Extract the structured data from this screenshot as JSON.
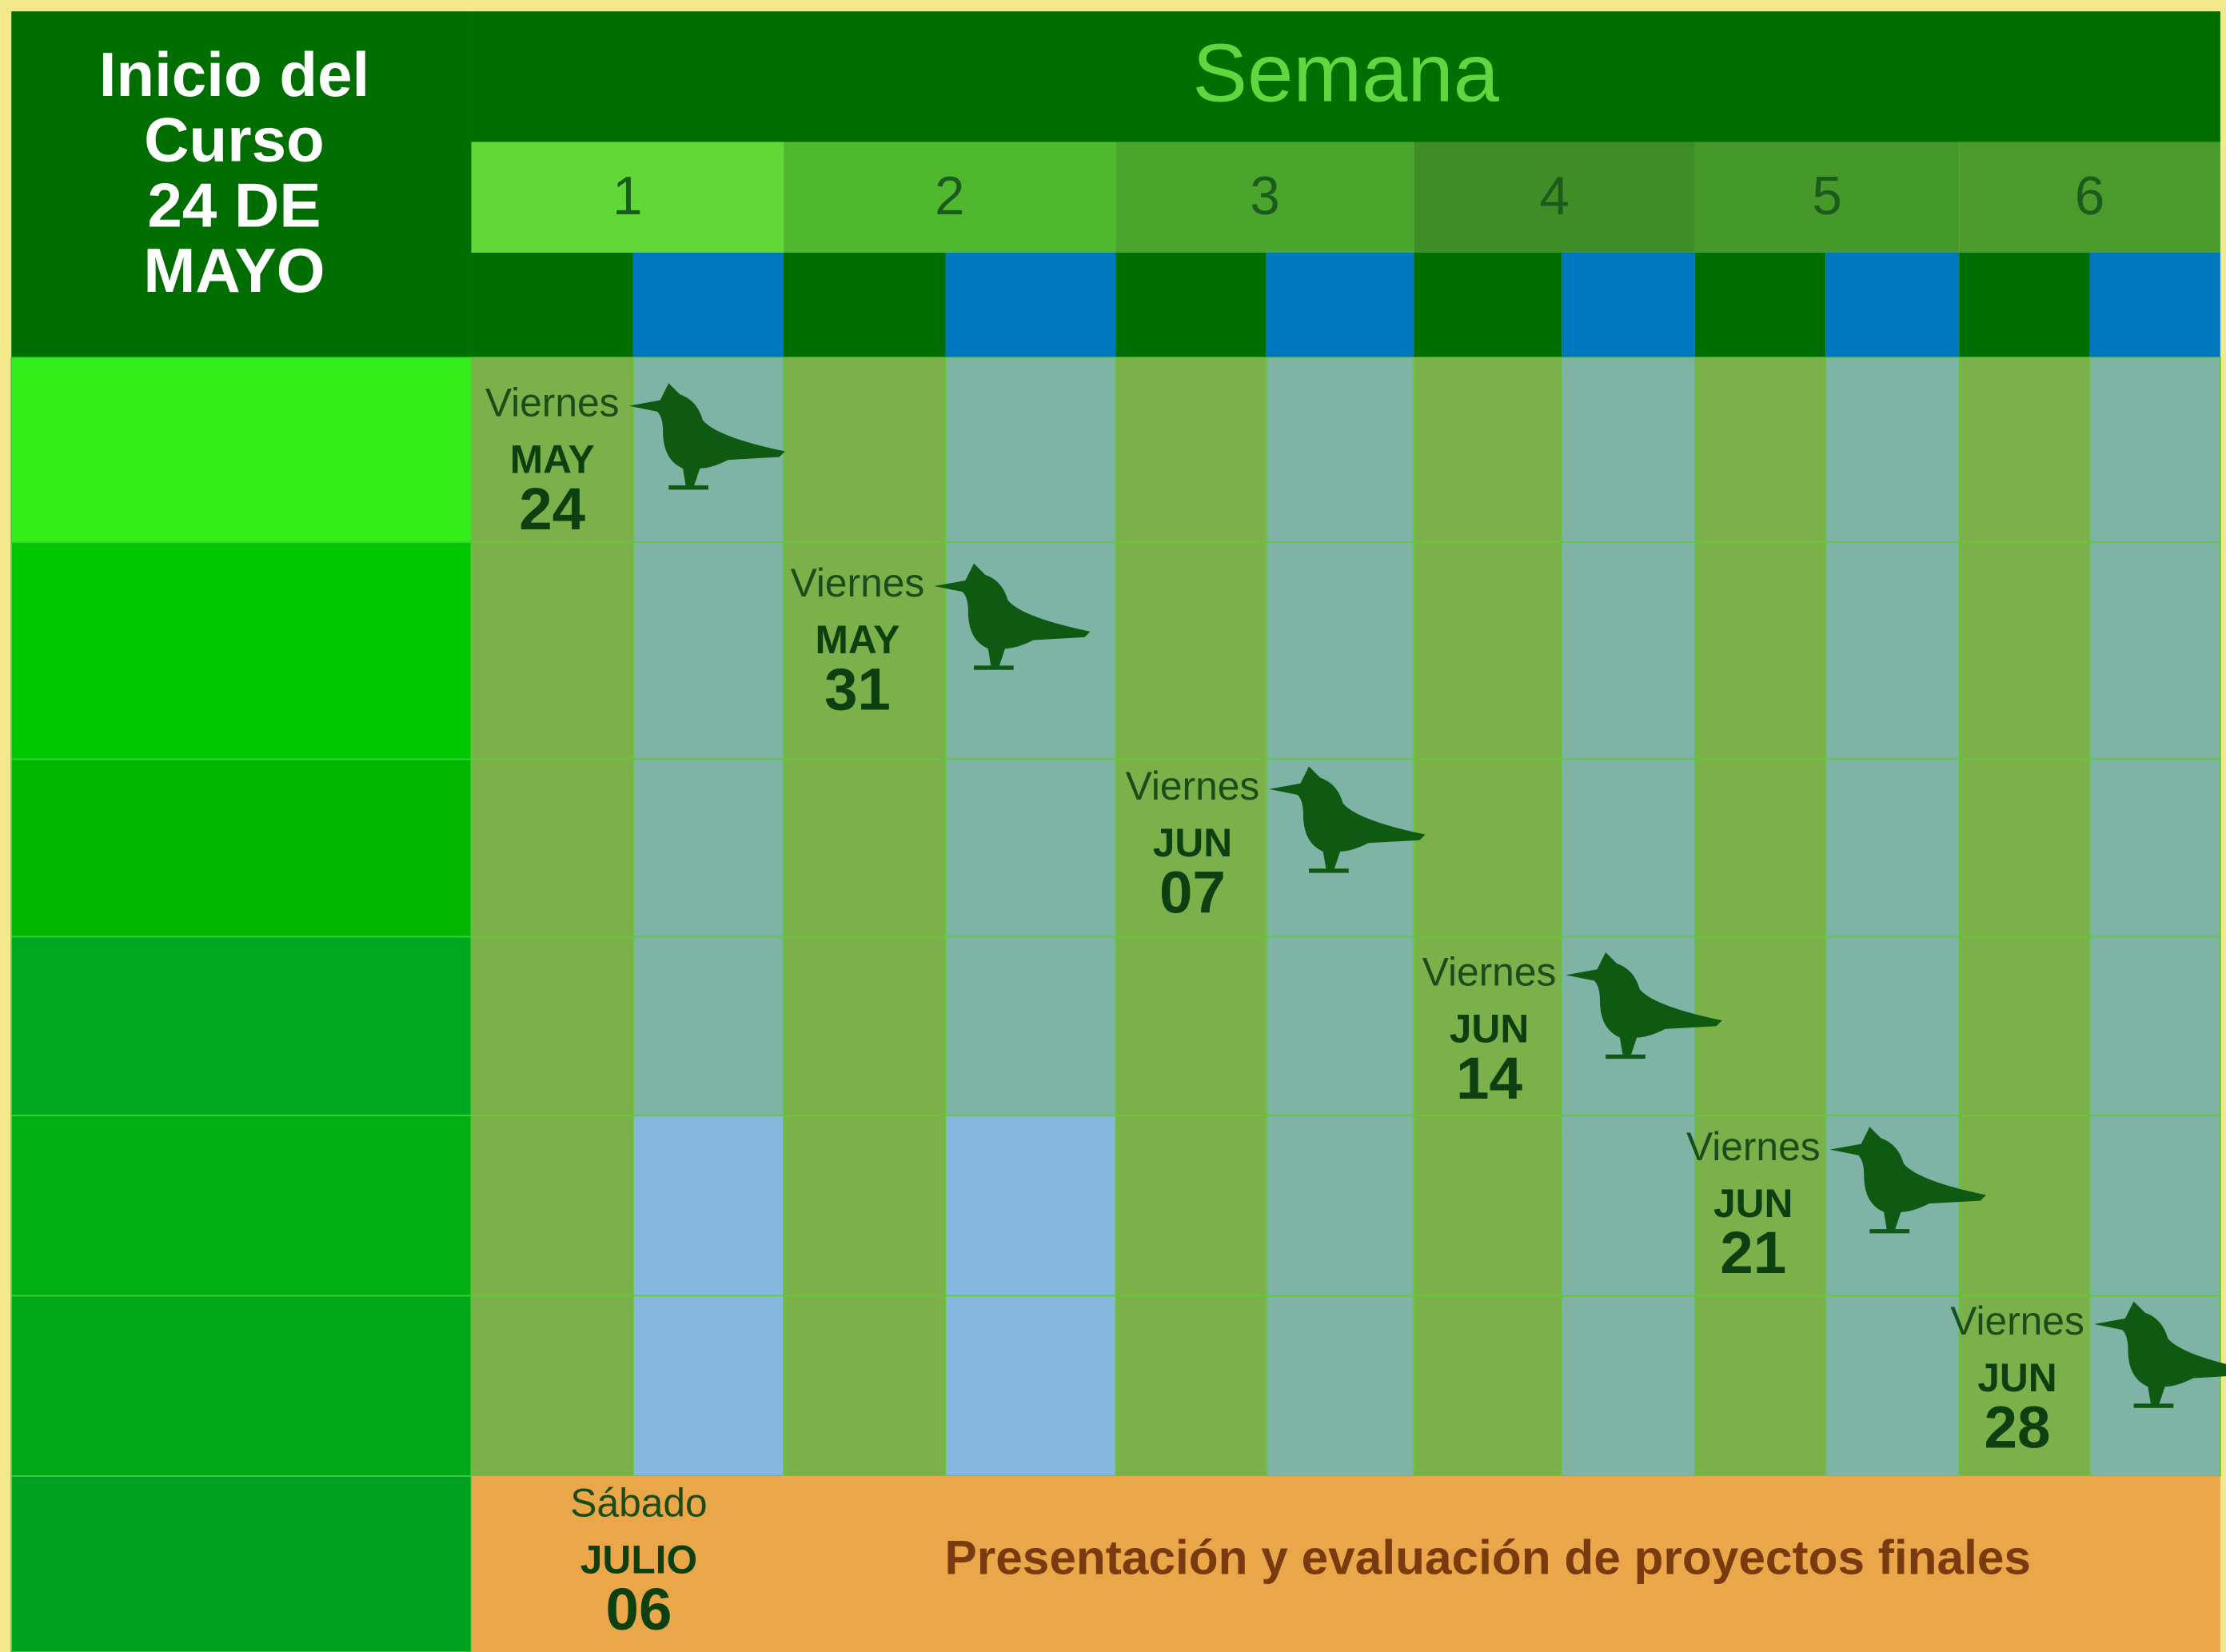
{
  "header": {
    "start_lines": [
      "Inicio del",
      "Curso",
      "24 DE",
      "MAYO"
    ],
    "week_title": "Semana",
    "weeks": [
      "1",
      "2",
      "3",
      "4",
      "5",
      "6"
    ]
  },
  "sessions": [
    {
      "day": "Viernes",
      "month": "MAY",
      "date": "24"
    },
    {
      "day": "Viernes",
      "month": "MAY",
      "date": "31"
    },
    {
      "day": "Viernes",
      "month": "JUN",
      "date": "07"
    },
    {
      "day": "Viernes",
      "month": "JUN",
      "date": "14"
    },
    {
      "day": "Viernes",
      "month": "JUN",
      "date": "21"
    },
    {
      "day": "Viernes",
      "month": "JUN",
      "date": "28"
    }
  ],
  "final": {
    "day": "Sábado",
    "month": "JULIO",
    "date": "06",
    "label": "Presentación y evaluación de proyectos finales"
  }
}
